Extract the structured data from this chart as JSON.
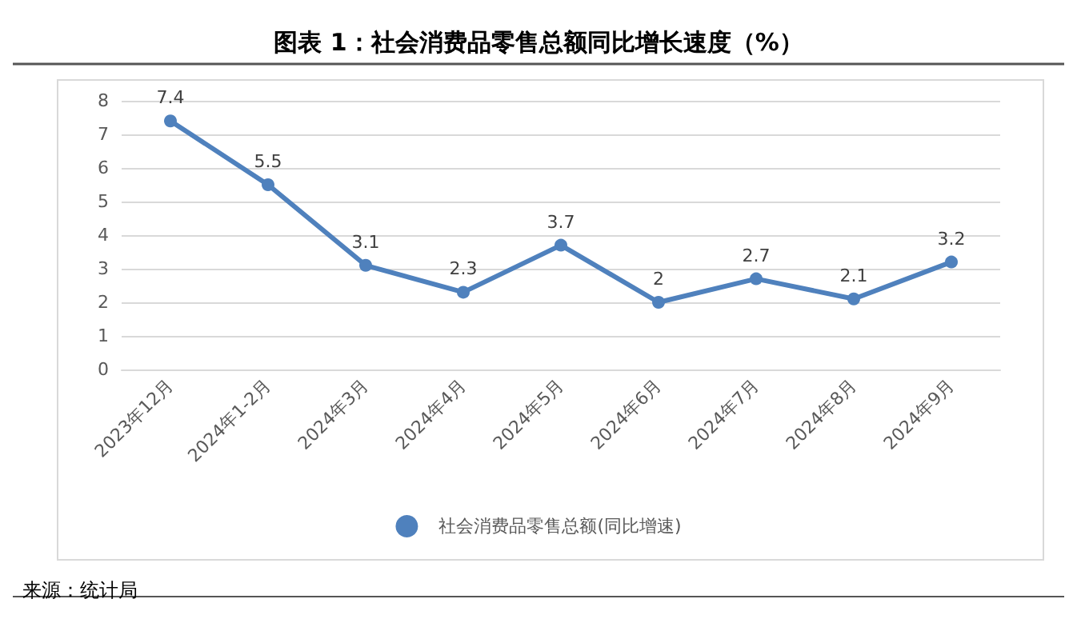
{
  "chart_data": {
    "type": "line",
    "title": "图表 1：社会消费品零售总额同比增长速度（%）",
    "categories": [
      "2023年12月",
      "2024年1-2月",
      "2024年3月",
      "2024年4月",
      "2024年5月",
      "2024年6月",
      "2024年7月",
      "2024年8月",
      "2024年9月"
    ],
    "series": [
      {
        "name": "社会消费品零售总额(同比增速)",
        "color": "#4f81bd",
        "values": [
          7.4,
          5.5,
          3.1,
          2.3,
          3.7,
          2,
          2.7,
          2.1,
          3.2
        ]
      }
    ],
    "ylim": [
      0,
      8
    ],
    "yticks": [
      0,
      1,
      2,
      3,
      4,
      5,
      6,
      7,
      8
    ],
    "grid": "y",
    "legend": "bottom",
    "marker": "circle",
    "line_style": "solid",
    "data_labels": true,
    "annotations": [
      "来源：统计局"
    ]
  }
}
